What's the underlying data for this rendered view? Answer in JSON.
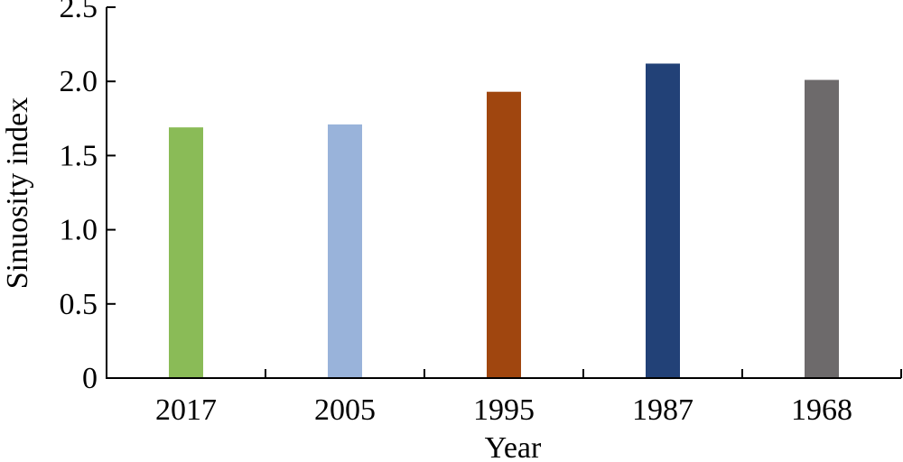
{
  "chart_data": {
    "type": "bar",
    "title": "",
    "xlabel": "Year",
    "ylabel": "Sinuosity index",
    "categories": [
      "2017",
      "2005",
      "1995",
      "1987",
      "1968"
    ],
    "values": [
      1.69,
      1.71,
      1.93,
      2.12,
      2.01
    ],
    "colors": [
      "#8abb57",
      "#99b3da",
      "#a0460f",
      "#224177",
      "#6d6a6b"
    ],
    "ylim": [
      0,
      2.5
    ],
    "yticks": [
      0,
      0.5,
      1.0,
      1.5,
      2.0,
      2.5
    ],
    "ytick_labels": [
      "0",
      "0.5",
      "1.0",
      "1.5",
      "2.0",
      "2.5"
    ],
    "grid": false,
    "legend": "none"
  }
}
